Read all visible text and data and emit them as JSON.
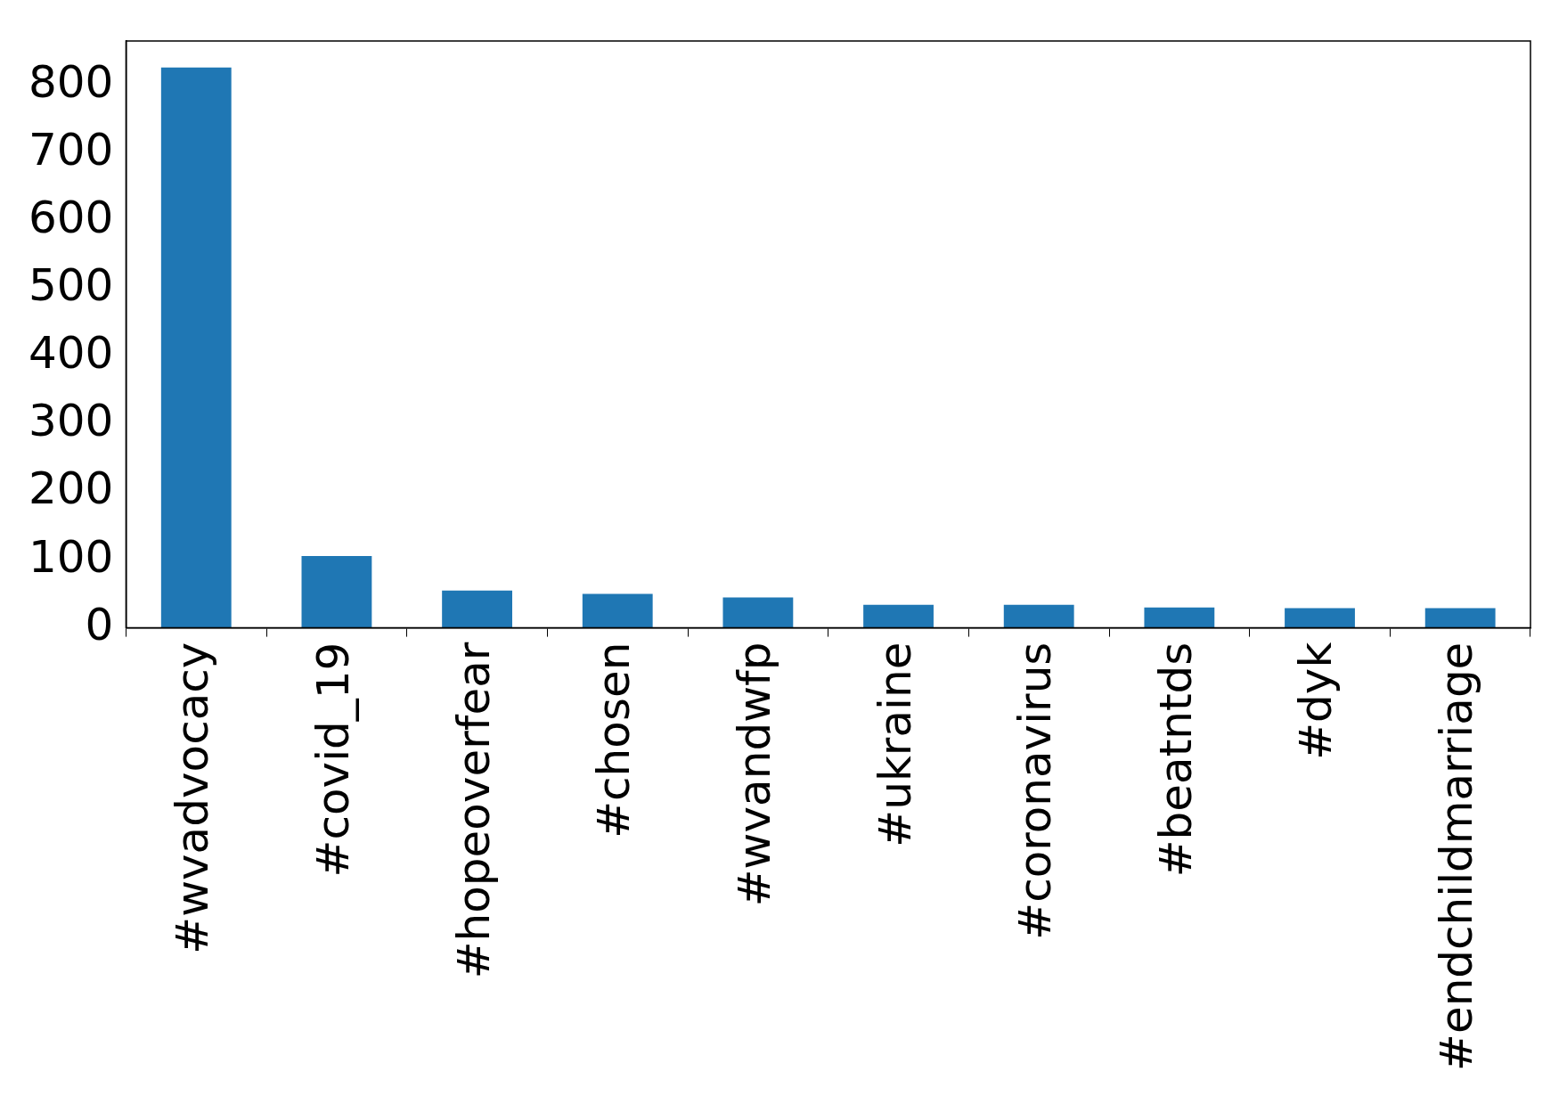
{
  "chart_data": {
    "type": "bar",
    "categories": [
      "#wvadvocacy",
      "#covid_19",
      "#hopeoverfear",
      "#chosen",
      "#wvandwfp",
      "#ukraine",
      "#coronavirus",
      "#beatntds",
      "#dyk",
      "#endchildmarriage"
    ],
    "values": [
      827,
      106,
      55,
      50,
      45,
      34,
      34,
      30,
      29,
      29
    ],
    "color": "#1f77b4",
    "ylim": [
      0,
      866
    ],
    "yticks": [
      0,
      100,
      200,
      300,
      400,
      500,
      600,
      700,
      800
    ],
    "grid": false,
    "legend": false
  }
}
